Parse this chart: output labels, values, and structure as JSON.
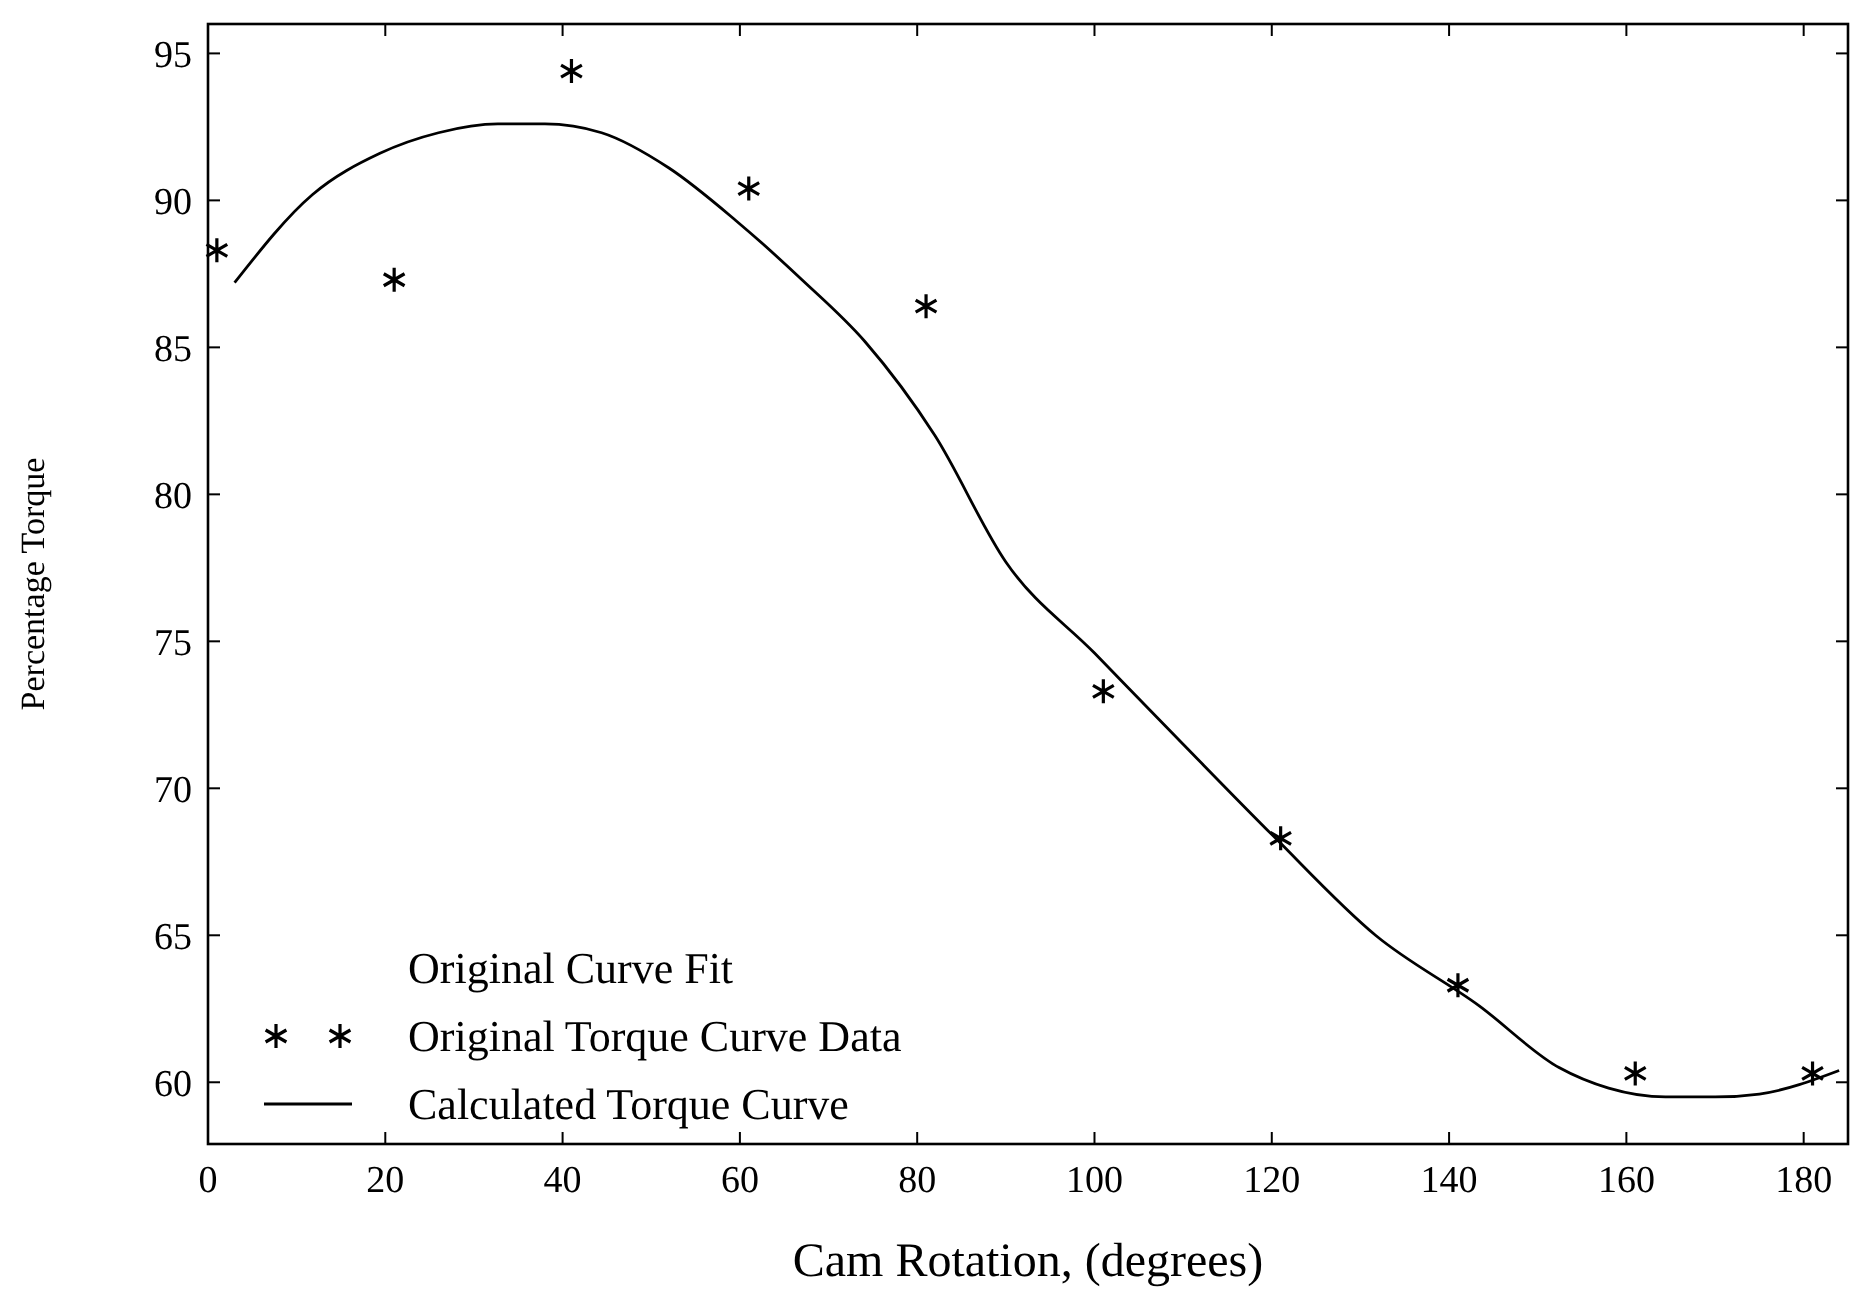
{
  "chart_data": {
    "type": "scatter",
    "xlabel": "Cam Rotation, (degrees)",
    "ylabel": "Percentage Torque",
    "xlim": [
      0,
      185
    ],
    "ylim": [
      57.9,
      96
    ],
    "xticks": [
      0,
      20,
      40,
      60,
      80,
      100,
      120,
      140,
      160,
      180
    ],
    "yticks": [
      60,
      65,
      70,
      75,
      80,
      85,
      90,
      95
    ],
    "grid": false,
    "legend": "bottom left",
    "annotations": [
      "Original Curve Fit"
    ],
    "series": [
      {
        "name": "Original Torque Curve Data",
        "marker": "cross",
        "color": "#000000",
        "x": [
          1,
          21,
          41,
          61,
          81,
          101,
          121,
          141,
          161,
          181
        ],
        "values": [
          88.3,
          87.3,
          94.4,
          90.4,
          86.4,
          73.3,
          68.3,
          63.3,
          60.3,
          60.3
        ]
      },
      {
        "name": "Calculated Torque Curve",
        "type": "line",
        "marker": "none",
        "line_style": "solid",
        "color": "#000000",
        "x": [
          3,
          11.8,
          19.4,
          26,
          32.7,
          38,
          44.4,
          52,
          59.6,
          67,
          74.1,
          82,
          90,
          100,
          110,
          120.1,
          131.7,
          143.4,
          152.4,
          158,
          164.4,
          170,
          175,
          184
        ],
        "values": [
          87.2,
          90.2,
          91.6,
          92.3,
          92.6,
          92.6,
          92.3,
          91.1,
          89.3,
          87.3,
          85.2,
          82,
          77.7,
          74.6,
          71.5,
          68.4,
          65,
          62.6,
          60.5,
          59.8,
          59.5,
          59.5,
          59.6,
          60.4
        ]
      }
    ]
  }
}
